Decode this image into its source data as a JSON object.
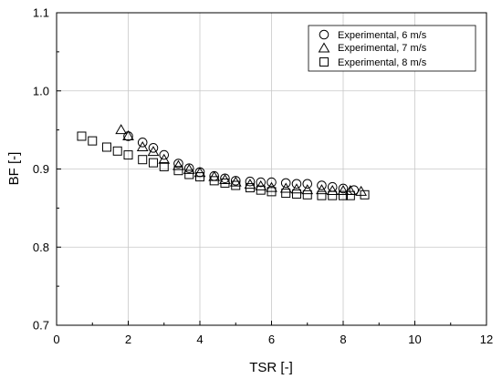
{
  "chart_data": {
    "type": "scatter",
    "title": "",
    "xlabel": "TSR [-]",
    "ylabel": "BF [-]",
    "xlim": [
      0,
      12
    ],
    "ylim": [
      0.7,
      1.1
    ],
    "xticks": [
      "0",
      "2",
      "4",
      "6",
      "8",
      "10",
      "12"
    ],
    "yticks": [
      "0.7",
      "0.8",
      "0.9",
      "1.0",
      "1.1"
    ],
    "grid": true,
    "legend_position": "top-right",
    "series": [
      {
        "name": "Experimental, 6 m/s",
        "marker": "circle",
        "x": [
          2.0,
          2.4,
          2.7,
          3.0,
          3.4,
          3.7,
          4.0,
          4.4,
          4.7,
          5.0,
          5.4,
          5.7,
          6.0,
          6.4,
          6.7,
          7.0,
          7.4,
          7.7,
          8.0,
          8.3
        ],
        "y": [
          0.942,
          0.934,
          0.927,
          0.918,
          0.907,
          0.901,
          0.896,
          0.891,
          0.888,
          0.885,
          0.884,
          0.883,
          0.883,
          0.882,
          0.881,
          0.881,
          0.879,
          0.877,
          0.875,
          0.873
        ]
      },
      {
        "name": "Experimental, 7 m/s",
        "marker": "triangle",
        "x": [
          1.8,
          2.0,
          2.4,
          2.7,
          3.0,
          3.4,
          3.7,
          4.0,
          4.4,
          4.7,
          5.0,
          5.4,
          5.7,
          6.0,
          6.4,
          6.7,
          7.0,
          7.4,
          7.7,
          8.0,
          8.2,
          8.5
        ],
        "y": [
          0.95,
          0.942,
          0.928,
          0.922,
          0.912,
          0.904,
          0.899,
          0.895,
          0.89,
          0.886,
          0.883,
          0.88,
          0.878,
          0.876,
          0.875,
          0.874,
          0.873,
          0.873,
          0.872,
          0.872,
          0.872,
          0.871
        ]
      },
      {
        "name": "Experimental, 8 m/s",
        "marker": "square",
        "x": [
          0.7,
          1.0,
          1.4,
          1.7,
          2.0,
          2.4,
          2.7,
          3.0,
          3.4,
          3.7,
          4.0,
          4.4,
          4.7,
          5.0,
          5.4,
          5.7,
          6.0,
          6.4,
          6.7,
          7.0,
          7.4,
          7.7,
          8.0,
          8.2,
          8.6
        ],
        "y": [
          0.942,
          0.936,
          0.928,
          0.923,
          0.918,
          0.912,
          0.908,
          0.903,
          0.898,
          0.893,
          0.89,
          0.885,
          0.882,
          0.879,
          0.876,
          0.873,
          0.871,
          0.869,
          0.868,
          0.867,
          0.866,
          0.866,
          0.866,
          0.866,
          0.867
        ]
      }
    ]
  }
}
